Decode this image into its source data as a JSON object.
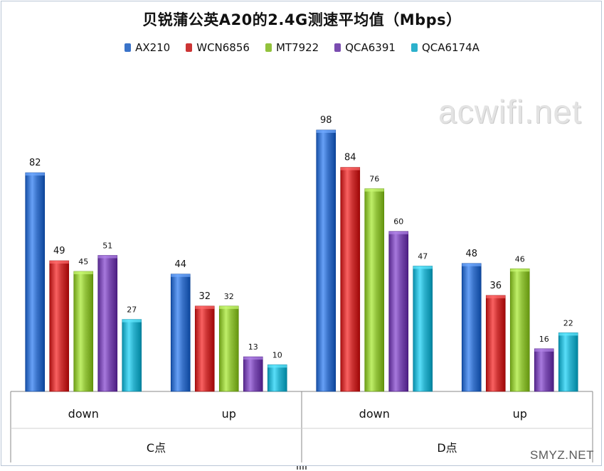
{
  "title": "贝锐蒲公英A20的2.4G测速平均值（Mbps）",
  "watermark_text": "acwifi.net",
  "corner_watermark_text": "SMYZ.NET",
  "chart_data": {
    "type": "bar",
    "title": "贝锐蒲公英A20的2.4G测速平均值（Mbps）",
    "xlabel": "",
    "ylabel": "",
    "ylim": [
      0,
      100
    ],
    "grid": false,
    "legend_position": "top",
    "groups": [
      "C点",
      "D点"
    ],
    "categories": [
      "down",
      "up",
      "down",
      "up"
    ],
    "category_groups": [
      "C点",
      "C点",
      "D点",
      "D点"
    ],
    "series": [
      {
        "name": "AX210",
        "color": "#3a73c9",
        "values": [
          82,
          44,
          98,
          48
        ]
      },
      {
        "name": "WCN6856",
        "color": "#cc3434",
        "values": [
          49,
          32,
          84,
          36
        ]
      },
      {
        "name": "MT7922",
        "color": "#92c23c",
        "values": [
          45,
          32,
          76,
          46
        ]
      },
      {
        "name": "QCA6391",
        "color": "#7a4cb0",
        "values": [
          51,
          13,
          60,
          16
        ]
      },
      {
        "name": "QCA6174A",
        "color": "#2cb1cc",
        "values": [
          27,
          10,
          47,
          22
        ]
      }
    ]
  }
}
